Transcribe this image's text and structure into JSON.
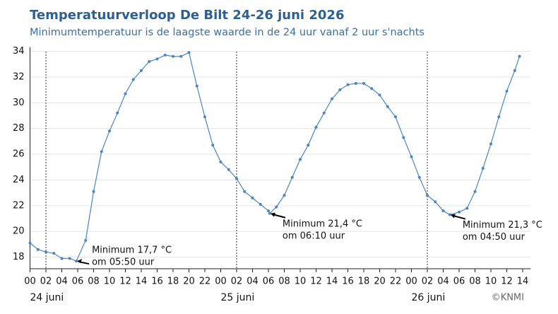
{
  "chart_data": {
    "type": "line",
    "title": "Temperatuurverloop De Bilt 24-26 juni 2026",
    "subtitle": "Minimumtemperatuur is de laagste waarde in de 24 uur vanaf 2 uur s'nachts",
    "source": "©KNMI",
    "x": [
      0,
      1,
      2,
      3,
      4,
      5,
      5.83,
      7,
      8,
      9,
      10,
      11,
      12,
      13,
      14,
      15,
      16,
      17,
      18,
      19,
      20,
      21,
      22,
      23,
      24,
      25,
      26,
      27,
      28,
      29,
      30,
      30.17,
      31,
      32,
      33,
      34,
      35,
      36,
      37,
      38,
      39,
      40,
      41,
      42,
      43,
      44,
      45,
      46,
      47,
      48,
      49,
      50,
      51,
      52,
      52.83,
      54,
      55,
      56,
      57,
      58,
      59,
      60,
      61,
      61.6
    ],
    "series": [
      {
        "name": "Temperatuur",
        "color": "#4a86c5",
        "values": [
          19.1,
          18.6,
          18.4,
          18.3,
          17.9,
          17.9,
          17.7,
          19.3,
          23.1,
          26.2,
          27.8,
          29.2,
          30.7,
          31.8,
          32.5,
          33.2,
          33.4,
          33.7,
          33.6,
          33.6,
          33.9,
          31.3,
          28.9,
          26.7,
          25.4,
          24.8,
          24.1,
          23.1,
          22.6,
          22.1,
          21.6,
          21.4,
          21.9,
          22.8,
          24.2,
          25.6,
          26.7,
          28.1,
          29.2,
          30.3,
          31.0,
          31.4,
          31.5,
          31.5,
          31.1,
          30.6,
          29.7,
          28.9,
          27.3,
          25.8,
          24.2,
          22.8,
          22.3,
          21.6,
          21.3,
          21.5,
          21.8,
          23.1,
          24.9,
          26.8,
          28.9,
          30.9,
          32.5,
          33.6
        ]
      }
    ],
    "xlim": [
      0,
      63
    ],
    "ylim": [
      17.1,
      34.3
    ],
    "yticks": [
      18,
      20,
      22,
      24,
      26,
      28,
      30,
      32,
      34
    ],
    "xticks": [
      {
        "value": 0,
        "label": "00"
      },
      {
        "value": 2,
        "label": "02"
      },
      {
        "value": 4,
        "label": "04"
      },
      {
        "value": 6,
        "label": "06"
      },
      {
        "value": 8,
        "label": "08"
      },
      {
        "value": 10,
        "label": "10"
      },
      {
        "value": 12,
        "label": "12"
      },
      {
        "value": 14,
        "label": "14"
      },
      {
        "value": 16,
        "label": "16"
      },
      {
        "value": 18,
        "label": "18"
      },
      {
        "value": 20,
        "label": "20"
      },
      {
        "value": 22,
        "label": "22"
      },
      {
        "value": 24,
        "label": "00"
      },
      {
        "value": 26,
        "label": "02"
      },
      {
        "value": 28,
        "label": "04"
      },
      {
        "value": 30,
        "label": "06"
      },
      {
        "value": 32,
        "label": "08"
      },
      {
        "value": 34,
        "label": "10"
      },
      {
        "value": 36,
        "label": "12"
      },
      {
        "value": 38,
        "label": "14"
      },
      {
        "value": 40,
        "label": "16"
      },
      {
        "value": 42,
        "label": "18"
      },
      {
        "value": 44,
        "label": "20"
      },
      {
        "value": 46,
        "label": "22"
      },
      {
        "value": 48,
        "label": "00"
      },
      {
        "value": 50,
        "label": "02"
      },
      {
        "value": 52,
        "label": "04"
      },
      {
        "value": 54,
        "label": "06"
      },
      {
        "value": 56,
        "label": "08"
      },
      {
        "value": 58,
        "label": "10"
      },
      {
        "value": 60,
        "label": "12"
      },
      {
        "value": 62,
        "label": "14"
      }
    ],
    "day_labels": [
      {
        "value": 0,
        "label": "24 juni"
      },
      {
        "value": 24,
        "label": "25 juni"
      },
      {
        "value": 48,
        "label": "26 juni"
      }
    ],
    "vlines": [
      2,
      26,
      50
    ],
    "grid": true,
    "annotations": [
      {
        "lines": [
          "Minimum 17,7 °C",
          "om 05:50 uur"
        ],
        "x": 5.83,
        "y": 17.7
      },
      {
        "lines": [
          "Minimum 21,4 °C",
          "om 06:10 uur"
        ],
        "x": 30.17,
        "y": 21.4
      },
      {
        "lines": [
          "Minimum 21,3 °C",
          "om 04:50 uur"
        ],
        "x": 52.83,
        "y": 21.3
      }
    ]
  }
}
